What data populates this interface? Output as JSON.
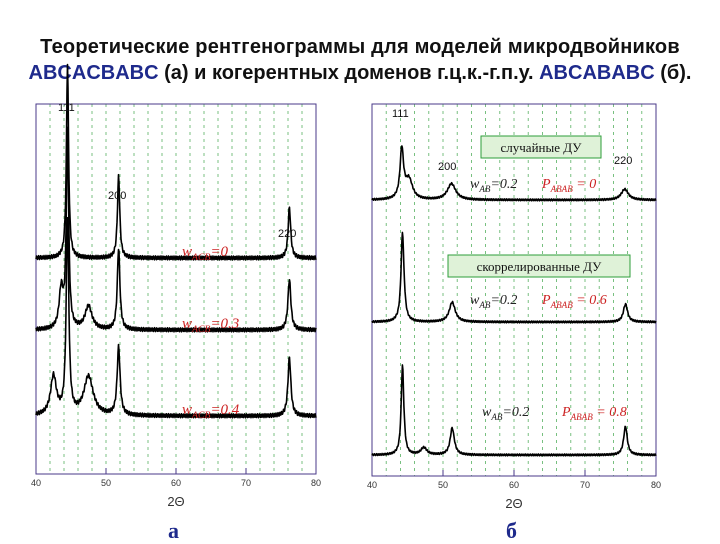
{
  "title": {
    "line1": "Теоретические рентгенограммы для моделей микродвойников",
    "line2_a": "ABCACBABC",
    "line2_b": " (а) и когерентных доменов г.ц.к.-г.п.у. ",
    "line2_c": "ABCABABC",
    "line2_d": " (б)."
  },
  "colors": {
    "line": "#000000",
    "grid": "#2e9d3a",
    "axis": "#4a3a8a",
    "label": "#cc2222",
    "box_fill": "#dff2d8",
    "box_border": "#2e9d3a"
  },
  "chart_data": [
    {
      "type": "line",
      "panel": "а",
      "xlabel": "2Θ",
      "xlim": [
        40,
        80
      ],
      "xticks": [
        40,
        50,
        60,
        70,
        80
      ],
      "peak_labels": [
        "111",
        "200",
        "220"
      ],
      "series": [
        {
          "label_main": "w",
          "label_sub": "ACB",
          "label_val": "=0",
          "peaks": [
            {
              "x": 44.5,
              "h": 1.0,
              "w": 0.18
            },
            {
              "x": 51.8,
              "h": 0.42,
              "w": 0.2
            },
            {
              "x": 76.2,
              "h": 0.26,
              "w": 0.22
            }
          ]
        },
        {
          "label_main": "w",
          "label_sub": "ACB",
          "label_val": "=0.3",
          "peaks": [
            {
              "x": 43.6,
              "h": 0.2,
              "w": 0.35
            },
            {
              "x": 44.5,
              "h": 1.0,
              "w": 0.2
            },
            {
              "x": 47.5,
              "h": 0.12,
              "w": 0.6
            },
            {
              "x": 51.8,
              "h": 0.42,
              "w": 0.22
            },
            {
              "x": 76.2,
              "h": 0.26,
              "w": 0.25
            }
          ]
        },
        {
          "label_main": "w",
          "label_sub": "ACB",
          "label_val": "=0.4",
          "peaks": [
            {
              "x": 42.5,
              "h": 0.2,
              "w": 0.5
            },
            {
              "x": 44.5,
              "h": 1.0,
              "w": 0.22
            },
            {
              "x": 47.5,
              "h": 0.2,
              "w": 0.8
            },
            {
              "x": 51.8,
              "h": 0.35,
              "w": 0.25
            },
            {
              "x": 76.2,
              "h": 0.3,
              "w": 0.25
            }
          ]
        }
      ]
    },
    {
      "type": "line",
      "panel": "б",
      "xlabel": "2Θ",
      "xlim": [
        40,
        80
      ],
      "xticks": [
        40,
        50,
        60,
        70,
        80
      ],
      "peak_labels": [
        "111",
        "200",
        "220"
      ],
      "boxes": [
        "случайные ДУ",
        "скоррелированные ДУ"
      ],
      "series": [
        {
          "label_main": "w",
          "label_sub": "AB",
          "label_val": "=0.2",
          "p_main": "P",
          "p_sub": "ABAB",
          "p_val": " = 0",
          "peaks": [
            {
              "x": 44.2,
              "h": 0.55,
              "w": 0.3
            },
            {
              "x": 45.2,
              "h": 0.22,
              "w": 0.6
            },
            {
              "x": 51.2,
              "h": 0.18,
              "w": 0.7
            },
            {
              "x": 75.6,
              "h": 0.12,
              "w": 0.6
            }
          ]
        },
        {
          "label_main": "w",
          "label_sub": "AB",
          "label_val": "=0.2",
          "p_main": "P",
          "p_sub": "ABAB",
          "p_val": " = 0.6",
          "peaks": [
            {
              "x": 44.3,
              "h": 1.0,
              "w": 0.25
            },
            {
              "x": 51.3,
              "h": 0.22,
              "w": 0.5
            },
            {
              "x": 75.7,
              "h": 0.2,
              "w": 0.35
            }
          ]
        },
        {
          "label_main": "w",
          "label_sub": "AB",
          "label_val": "=0.2",
          "p_main": "P",
          "p_sub": "ABAB",
          "p_val": " = 0.8",
          "peaks": [
            {
              "x": 44.3,
              "h": 1.0,
              "w": 0.22
            },
            {
              "x": 47.3,
              "h": 0.08,
              "w": 0.5
            },
            {
              "x": 51.3,
              "h": 0.3,
              "w": 0.35
            },
            {
              "x": 75.7,
              "h": 0.32,
              "w": 0.3
            }
          ]
        }
      ]
    }
  ]
}
